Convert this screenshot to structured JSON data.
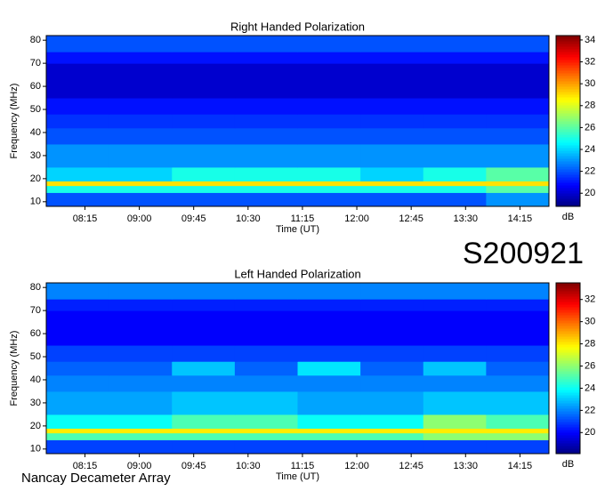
{
  "header": {
    "id": "S200921",
    "footer": "Nancay Decameter Array"
  },
  "chart_data": [
    {
      "type": "heatmap",
      "title": "Right Handed Polarization",
      "x_label": "Time (UT)",
      "y_label": "Frequency (MHz)",
      "colorbar_label": "dB",
      "xlim": [
        463,
        879
      ],
      "xticks": [
        {
          "value": 495,
          "label": "08:15"
        },
        {
          "value": 540,
          "label": "09:00"
        },
        {
          "value": 585,
          "label": "09:45"
        },
        {
          "value": 630,
          "label": "10:30"
        },
        {
          "value": 675,
          "label": "11:15"
        },
        {
          "value": 720,
          "label": "12:00"
        },
        {
          "value": 765,
          "label": "12:45"
        },
        {
          "value": 810,
          "label": "13:30"
        },
        {
          "value": 855,
          "label": "14:15"
        }
      ],
      "ylim": [
        8,
        82
      ],
      "yticks": [
        10,
        20,
        30,
        40,
        50,
        60,
        70,
        80
      ],
      "clim": [
        18.8,
        34.4
      ],
      "cticks": [
        20,
        22,
        24,
        26,
        28,
        30,
        32,
        34
      ],
      "x_edges": [
        463,
        515,
        567,
        619,
        671,
        723,
        775,
        827,
        879
      ],
      "y_edges": [
        8,
        14,
        17,
        19,
        25,
        35,
        42,
        48,
        55,
        70,
        75,
        82
      ],
      "z": [
        [
          22,
          22,
          22,
          22,
          22,
          22,
          22,
          23
        ],
        [
          25,
          25,
          25,
          25,
          25,
          25,
          25,
          26
        ],
        [
          29,
          29,
          29,
          29,
          29,
          29,
          29,
          29
        ],
        [
          24,
          24,
          25,
          25,
          25,
          24,
          25,
          26
        ],
        [
          23,
          23,
          23,
          23,
          23,
          23,
          23,
          23
        ],
        [
          22,
          22,
          22,
          22,
          22,
          22,
          22,
          22
        ],
        [
          21.5,
          21.5,
          21.5,
          21.5,
          21.5,
          21.5,
          21.5,
          21.5
        ],
        [
          21,
          21,
          21,
          21,
          21,
          21,
          21,
          21
        ],
        [
          20,
          20,
          20,
          20,
          20,
          20,
          20,
          20
        ],
        [
          21,
          21,
          21,
          21,
          21,
          21,
          21,
          21
        ],
        [
          22,
          22,
          22,
          22,
          22,
          22,
          22,
          22
        ]
      ]
    },
    {
      "type": "heatmap",
      "title": "Left Handed Polarization",
      "x_label": "Time (UT)",
      "y_label": "Frequency (MHz)",
      "colorbar_label": "dB",
      "xlim": [
        463,
        879
      ],
      "xticks": [
        {
          "value": 495,
          "label": "08:15"
        },
        {
          "value": 540,
          "label": "09:00"
        },
        {
          "value": 585,
          "label": "09:45"
        },
        {
          "value": 630,
          "label": "10:30"
        },
        {
          "value": 675,
          "label": "11:15"
        },
        {
          "value": 720,
          "label": "12:00"
        },
        {
          "value": 765,
          "label": "12:45"
        },
        {
          "value": 810,
          "label": "13:30"
        },
        {
          "value": 855,
          "label": "14:15"
        }
      ],
      "ylim": [
        8,
        82
      ],
      "yticks": [
        10,
        20,
        30,
        40,
        50,
        60,
        70,
        80
      ],
      "clim": [
        18.1,
        33.5
      ],
      "cticks": [
        20,
        22,
        24,
        26,
        28,
        30,
        32
      ],
      "x_edges": [
        463,
        515,
        567,
        619,
        671,
        723,
        775,
        827,
        879
      ],
      "y_edges": [
        8,
        14,
        17,
        19,
        25,
        35,
        42,
        48,
        55,
        70,
        75,
        82
      ],
      "z": [
        [
          21,
          21,
          21,
          21,
          21,
          21,
          21,
          21
        ],
        [
          25,
          25,
          25,
          25,
          25,
          25,
          26,
          26
        ],
        [
          28,
          28,
          28,
          28,
          28,
          28,
          28,
          28
        ],
        [
          24,
          24,
          25,
          25,
          24,
          24,
          26,
          25
        ],
        [
          22.5,
          22.5,
          23,
          23,
          22.5,
          22.5,
          23,
          23
        ],
        [
          22,
          22,
          22,
          22,
          22,
          22,
          22,
          22
        ],
        [
          21.5,
          21.5,
          23,
          21.5,
          23.5,
          21.5,
          23,
          21.5
        ],
        [
          21,
          21,
          21,
          21,
          21,
          21,
          21,
          21
        ],
        [
          20,
          20,
          20,
          20,
          20,
          20,
          20,
          20
        ],
        [
          20.5,
          20.5,
          20.5,
          20.5,
          20.5,
          20.5,
          20.5,
          20.5
        ],
        [
          22,
          22,
          22,
          22,
          22,
          22,
          22,
          22
        ]
      ]
    }
  ]
}
